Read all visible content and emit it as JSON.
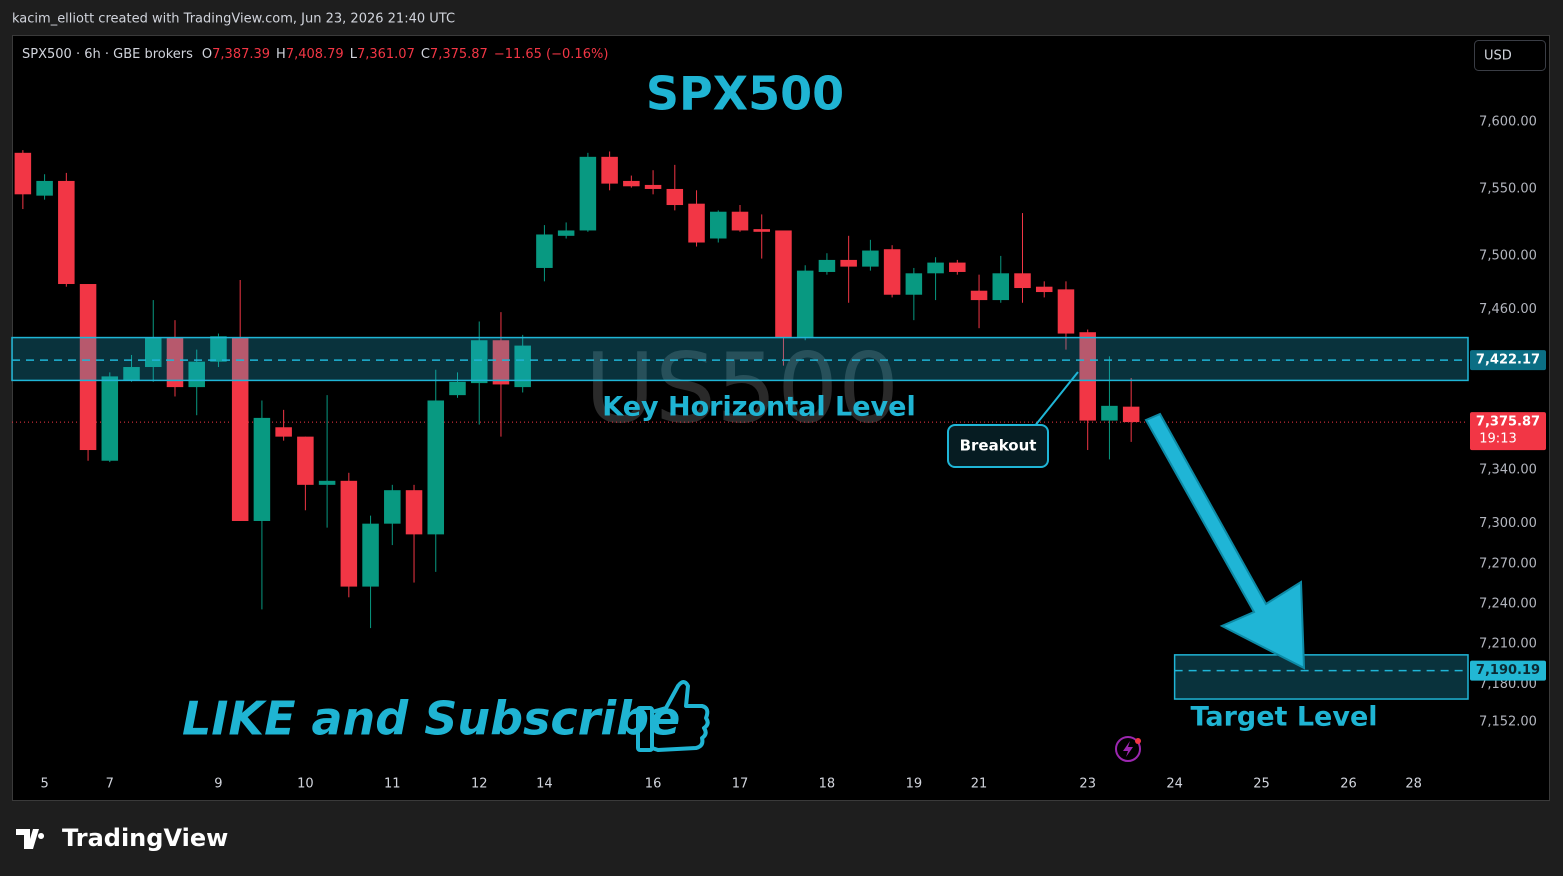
{
  "header": {
    "credit": "kacim_elliott created with TradingView.com, Jun 23, 2026 21:40 UTC",
    "currency": "USD"
  },
  "footer": {
    "logo": "TradingView"
  },
  "chart_data": {
    "type": "candlestick",
    "title": "SPX500",
    "watermark": "US500",
    "legend": {
      "symbol": "SPX500 · 6h · GBE brokers",
      "items": [
        {
          "key": "O",
          "value": "7,387.39"
        },
        {
          "key": "H",
          "value": "7,408.79"
        },
        {
          "key": "L",
          "value": "7,361.07"
        },
        {
          "key": "C",
          "value": "7,375.87"
        }
      ],
      "change": "−11.65 (−0.16%)"
    },
    "categories": [
      null,
      "5",
      null,
      null,
      "7",
      null,
      null,
      null,
      null,
      "9",
      null,
      null,
      null,
      "10",
      null,
      null,
      null,
      "11",
      null,
      null,
      null,
      "12",
      null,
      null,
      "14",
      null,
      null,
      null,
      null,
      "16",
      null,
      null,
      null,
      "17",
      null,
      null,
      null,
      "18",
      null,
      null,
      null,
      "19",
      null,
      null,
      "21",
      null,
      null,
      null,
      null,
      "23",
      null,
      null,
      null,
      "24",
      null,
      null,
      null,
      "25",
      null,
      null,
      null,
      "26",
      null,
      null,
      "28",
      null,
      null
    ],
    "open": [
      7577,
      7545,
      7556,
      7479,
      7347,
      7407,
      7417,
      7439,
      7402,
      7421,
      7439,
      7302,
      7372,
      7365,
      7329,
      7332,
      7253,
      7300,
      7325,
      7292,
      7396,
      7405,
      7437,
      7402,
      7491,
      7515,
      7519,
      7574,
      7556,
      7553,
      7550,
      7539,
      7513,
      7533,
      7520,
      7519,
      7439,
      7488,
      7497,
      7492,
      7505,
      7471,
      7487,
      7495,
      7474,
      7467,
      7487,
      7477,
      7475,
      7443,
      7377,
      7387.39,
      null,
      null,
      null,
      null,
      null,
      null,
      null,
      null,
      null,
      null,
      null,
      null,
      null,
      null,
      null
    ],
    "high": [
      7579,
      7561,
      7562,
      7479,
      7413,
      7426,
      7467,
      7452,
      7430,
      7442,
      7482,
      7392,
      7385,
      7365,
      7396,
      7338,
      7306,
      7329,
      7329,
      7415,
      7413,
      7451,
      7458,
      7441,
      7523,
      7525,
      7577,
      7578,
      7560,
      7564,
      7568,
      7549,
      7534,
      7538,
      7531,
      7519,
      7493,
      7502,
      7515,
      7512,
      7508,
      7491,
      7499,
      7497,
      7486,
      7500,
      7532,
      7481,
      7481,
      7445,
      7425,
      7408.79,
      null,
      null,
      null,
      null,
      null,
      null,
      null,
      null,
      null,
      null,
      null,
      null,
      null,
      null,
      null
    ],
    "low": [
      7535,
      7542,
      7477,
      7347,
      7346,
      7406,
      7406,
      7395,
      7381,
      7417,
      7302,
      7236,
      7362,
      7310,
      7297,
      7245,
      7222,
      7284,
      7256,
      7264,
      7394,
      7374,
      7365,
      7398,
      7481,
      7513,
      7518,
      7549,
      7551,
      7546,
      7534,
      7507,
      7510,
      7518,
      7498,
      7418,
      7437,
      7486,
      7465,
      7489,
      7469,
      7452,
      7467,
      7486,
      7446,
      7465,
      7465,
      7469,
      7430,
      7355,
      7348,
      7361.07,
      null,
      null,
      null,
      null,
      null,
      null,
      null,
      null,
      null,
      null,
      null,
      null,
      null,
      null,
      null
    ],
    "close": [
      7546,
      7556,
      7479,
      7355,
      7410,
      7417,
      7439,
      7402,
      7421,
      7440,
      7302,
      7379,
      7365,
      7329,
      7332,
      7253,
      7300,
      7325,
      7292,
      7392,
      7406,
      7437,
      7404,
      7433,
      7516,
      7519,
      7574,
      7554,
      7552,
      7550,
      7538,
      7510,
      7533,
      7519,
      7518,
      7439,
      7489,
      7497,
      7492,
      7504,
      7471,
      7487,
      7495,
      7488,
      7467,
      7487,
      7476,
      7473,
      7442,
      7377,
      7388,
      7375.87,
      null,
      null,
      null,
      null,
      null,
      null,
      null,
      null,
      null,
      null,
      null,
      null,
      null,
      null,
      null
    ],
    "up_color": "#089981",
    "down_color": "#f23645",
    "ylim": [
      7116,
      7665
    ],
    "yticks": [
      {
        "value": 7600,
        "label": "7,600.00"
      },
      {
        "value": 7550,
        "label": "7,550.00"
      },
      {
        "value": 7500,
        "label": "7,500.00"
      },
      {
        "value": 7460,
        "label": "7,460.00"
      },
      {
        "value": 7340,
        "label": "7,340.00"
      },
      {
        "value": 7300,
        "label": "7,300.00"
      },
      {
        "value": 7270,
        "label": "7,270.00"
      },
      {
        "value": 7240,
        "label": "7,240.00"
      },
      {
        "value": 7210,
        "label": "7,210.00"
      },
      {
        "value": 7180,
        "label": "7,180.00"
      },
      {
        "value": 7152,
        "label": "7,152.00"
      }
    ],
    "grid": false,
    "key_zone": {
      "low": 7407,
      "high": 7439,
      "level": 7422.17,
      "level_label": "7,422.17",
      "text": "Key Horizontal Level"
    },
    "target_zone": {
      "low": 7169,
      "high": 7202,
      "level": 7190.19,
      "level_label": "7,190.19",
      "text": "Target Level"
    },
    "last_price": {
      "value": 7375.87,
      "label": "7,375.87",
      "countdown": "19:13"
    },
    "breakout": "Breakout",
    "call_to_action": "LIKE and Subscribe"
  }
}
